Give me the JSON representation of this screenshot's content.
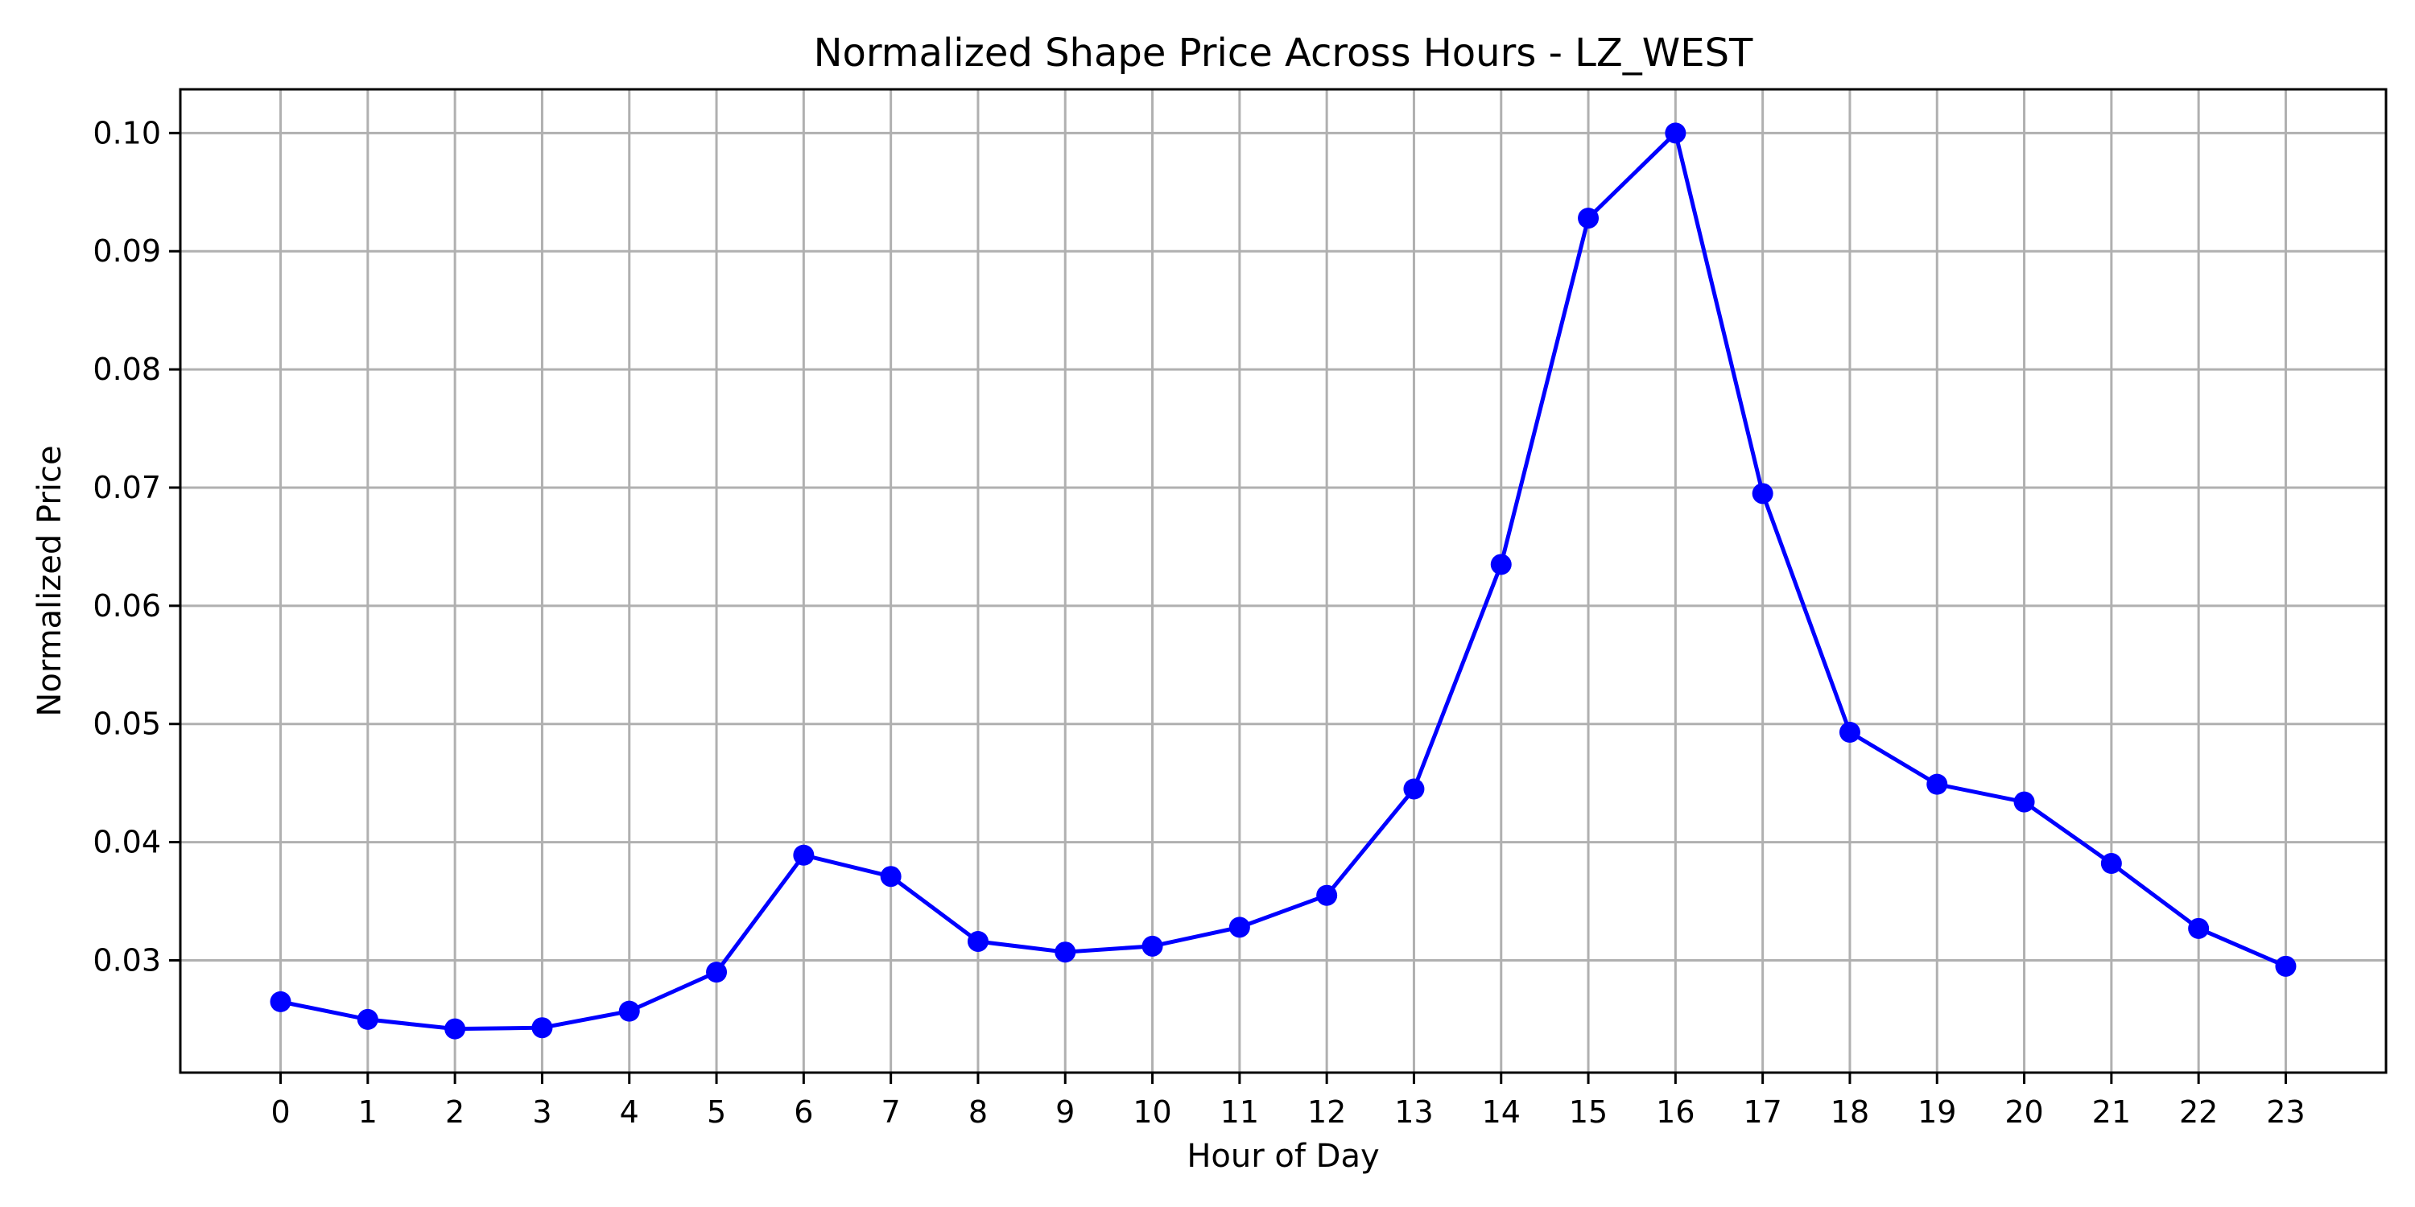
{
  "chart_data": {
    "type": "line",
    "title": "Normalized Shape Price Across Hours - LZ_WEST",
    "xlabel": "Hour of Day",
    "ylabel": "Normalized Price",
    "x": [
      0,
      1,
      2,
      3,
      4,
      5,
      6,
      7,
      8,
      9,
      10,
      11,
      12,
      13,
      14,
      15,
      16,
      17,
      18,
      19,
      20,
      21,
      22,
      23
    ],
    "x_tick_labels": [
      "0",
      "1",
      "2",
      "3",
      "4",
      "5",
      "6",
      "7",
      "8",
      "9",
      "10",
      "11",
      "12",
      "13",
      "14",
      "15",
      "16",
      "17",
      "18",
      "19",
      "20",
      "21",
      "22",
      "23"
    ],
    "y_ticks": [
      0.03,
      0.04,
      0.05,
      0.06,
      0.07,
      0.08,
      0.09,
      0.1
    ],
    "y_tick_labels": [
      "0.03",
      "0.04",
      "0.05",
      "0.06",
      "0.07",
      "0.08",
      "0.09",
      "0.10"
    ],
    "xlim": [
      -1.15,
      24.15
    ],
    "ylim": [
      0.0205,
      0.1037
    ],
    "grid": true,
    "series": [
      {
        "values": [
          0.0265,
          0.025,
          0.0242,
          0.0243,
          0.0257,
          0.029,
          0.0389,
          0.0371,
          0.0316,
          0.0307,
          0.0312,
          0.0328,
          0.0355,
          0.0445,
          0.0635,
          0.0928,
          0.1,
          0.0695,
          0.0493,
          0.0449,
          0.0434,
          0.0382,
          0.0327,
          0.0295
        ],
        "color": "#0000ff",
        "marker": "circle"
      }
    ]
  }
}
